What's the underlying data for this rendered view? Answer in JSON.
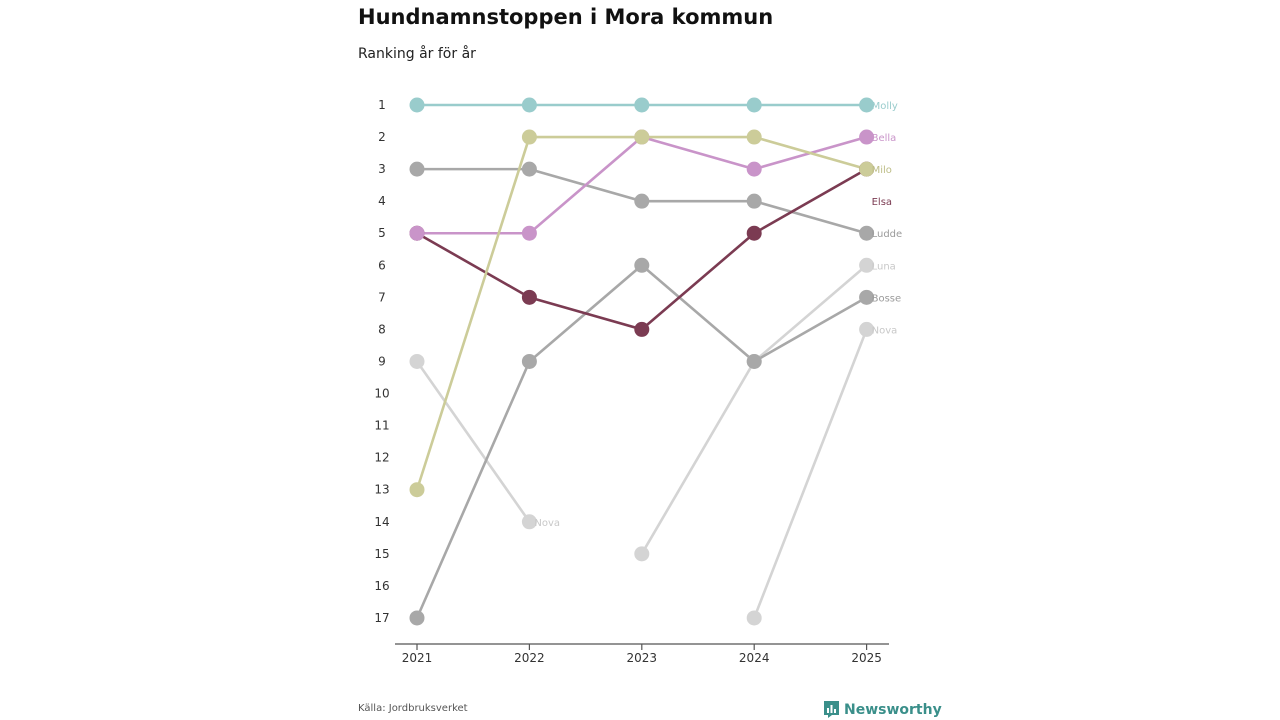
{
  "page": {
    "title": "Hundnamnstoppen i Mora kommun",
    "subtitle": "Ranking år för år",
    "source": "Källa: Jordbruksverket",
    "brand": "Newsworthy",
    "brand_color": "#3a8f8a"
  },
  "chart_data": {
    "type": "line",
    "title": "Hundnamnstoppen i Mora kommun",
    "subtitle": "Ranking år för år",
    "x": [
      "2021",
      "2022",
      "2023",
      "2024",
      "2025"
    ],
    "y_ticks": [
      1,
      2,
      3,
      4,
      5,
      6,
      7,
      8,
      9,
      10,
      11,
      12,
      13,
      14,
      15,
      16,
      17
    ],
    "ylim": [
      1,
      17
    ],
    "y_inverted": true,
    "xlabel": "",
    "ylabel": "",
    "series": [
      {
        "name": "Nova",
        "color": "#d4d4d4",
        "label_color": "#c8c8c8",
        "values": [
          9,
          14,
          null,
          null,
          null
        ],
        "show_label": "2022"
      },
      {
        "name": "Nova",
        "color": "#d4d4d4",
        "label_color": "#c8c8c8",
        "values": [
          null,
          null,
          null,
          17,
          8
        ],
        "show_label": "end"
      },
      {
        "name": "Luna",
        "color": "#d4d4d4",
        "label_color": "#c8c8c8",
        "values": [
          null,
          null,
          15,
          9,
          6
        ],
        "show_label": "end"
      },
      {
        "name": "Bosse",
        "color": "#a8a8a8",
        "label_color": "#9a9a9a",
        "values": [
          17,
          9,
          6,
          9,
          7
        ],
        "show_label": "end"
      },
      {
        "name": "Ludde",
        "color": "#a8a8a8",
        "label_color": "#9a9a9a",
        "values": [
          3,
          3,
          4,
          4,
          5
        ],
        "show_label": "end"
      },
      {
        "name": "Elsa",
        "color": "#7b3b52",
        "label_color": "#7b3b52",
        "values": [
          5,
          7,
          8,
          5,
          3
        ],
        "show_label": "end-offset",
        "label_rank": 4
      },
      {
        "name": "Bella",
        "color": "#c994c9",
        "label_color": "#c994c9",
        "values": [
          5,
          5,
          2,
          3,
          2
        ],
        "show_label": "end"
      },
      {
        "name": "Milo",
        "color": "#cccc99",
        "label_color": "#bdbd86",
        "values": [
          13,
          2,
          2,
          2,
          3
        ],
        "show_label": "end"
      },
      {
        "name": "Molly",
        "color": "#99cccc",
        "label_color": "#99cccc",
        "values": [
          1,
          1,
          1,
          1,
          1
        ],
        "show_label": "end"
      }
    ]
  }
}
